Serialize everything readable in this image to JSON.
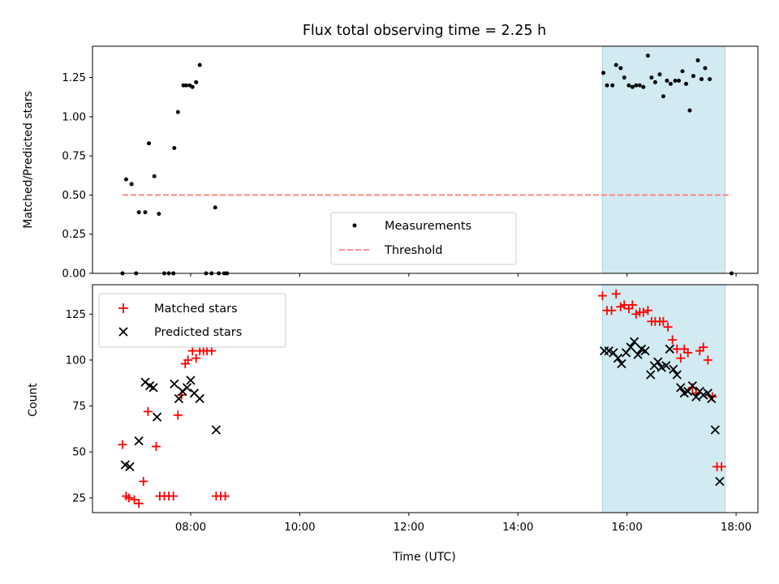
{
  "chart_data": [
    {
      "type": "scatter",
      "title": "Flux total observing time = 2.25 h",
      "ylabel": "Matched/Predicted stars",
      "xlabel": "",
      "xlim": [
        "06:12",
        "18:24"
      ],
      "ylim": [
        0,
        1.45
      ],
      "ytick_labels": [
        "0.00",
        "0.25",
        "0.50",
        "0.75",
        "1.00",
        "1.25"
      ],
      "highlight_span": [
        "15:33",
        "17:48"
      ],
      "highlight_color": "#add8e6",
      "legend_position": "lower-center",
      "series": [
        {
          "name": "Measurements",
          "marker": "dot",
          "color": "#000000",
          "points": [
            [
              "06:45",
              0.0
            ],
            [
              "06:49",
              0.6
            ],
            [
              "06:55",
              0.57
            ],
            [
              "07:00",
              0.0
            ],
            [
              "07:03",
              0.39
            ],
            [
              "07:10",
              0.39
            ],
            [
              "07:14",
              0.83
            ],
            [
              "07:20",
              0.62
            ],
            [
              "07:25",
              0.38
            ],
            [
              "07:31",
              0.0
            ],
            [
              "07:36",
              0.0
            ],
            [
              "07:41",
              0.0
            ],
            [
              "07:42",
              0.8
            ],
            [
              "07:46",
              1.03
            ],
            [
              "07:52",
              1.2
            ],
            [
              "07:55",
              1.2
            ],
            [
              "07:59",
              1.2
            ],
            [
              "08:02",
              1.19
            ],
            [
              "08:06",
              1.22
            ],
            [
              "08:10",
              1.33
            ],
            [
              "08:17",
              0.0
            ],
            [
              "08:23",
              0.0
            ],
            [
              "08:27",
              0.42
            ],
            [
              "08:31",
              0.0
            ],
            [
              "08:37",
              0.0
            ],
            [
              "08:40",
              0.0
            ],
            [
              "15:34",
              1.28
            ],
            [
              "15:38",
              1.2
            ],
            [
              "15:44",
              1.2
            ],
            [
              "15:48",
              1.33
            ],
            [
              "15:53",
              1.31
            ],
            [
              "15:57",
              1.25
            ],
            [
              "16:02",
              1.2
            ],
            [
              "16:06",
              1.19
            ],
            [
              "16:10",
              1.2
            ],
            [
              "16:14",
              1.2
            ],
            [
              "16:18",
              1.19
            ],
            [
              "16:23",
              1.39
            ],
            [
              "16:27",
              1.25
            ],
            [
              "16:31",
              1.22
            ],
            [
              "16:36",
              1.27
            ],
            [
              "16:40",
              1.13
            ],
            [
              "16:44",
              1.23
            ],
            [
              "16:48",
              1.21
            ],
            [
              "16:53",
              1.23
            ],
            [
              "16:57",
              1.23
            ],
            [
              "17:01",
              1.29
            ],
            [
              "17:05",
              1.21
            ],
            [
              "17:09",
              1.04
            ],
            [
              "17:13",
              1.26
            ],
            [
              "17:18",
              1.36
            ],
            [
              "17:22",
              1.24
            ],
            [
              "17:26",
              1.31
            ],
            [
              "17:31",
              1.24
            ],
            [
              "17:55",
              0.0
            ]
          ]
        },
        {
          "name": "Threshold",
          "marker": "dashed-line",
          "color": "#ff8080",
          "points": [
            [
              "06:45",
              0.5
            ],
            [
              "17:55",
              0.5
            ]
          ]
        }
      ]
    },
    {
      "type": "scatter",
      "title": "",
      "ylabel": "Count",
      "xlabel": "Time (UTC)",
      "xlim": [
        "06:12",
        "18:24"
      ],
      "ylim": [
        17,
        141
      ],
      "ytick_labels": [
        "25",
        "50",
        "75",
        "100",
        "125"
      ],
      "xtick_labels": [
        "08:00",
        "10:00",
        "12:00",
        "14:00",
        "16:00",
        "18:00"
      ],
      "highlight_span": [
        "15:33",
        "17:48"
      ],
      "highlight_color": "#add8e6",
      "legend_position": "upper-left",
      "series": [
        {
          "name": "Matched stars",
          "marker": "plus",
          "color": "#ff0000",
          "points": [
            [
              "06:45",
              54
            ],
            [
              "06:49",
              26
            ],
            [
              "06:52",
              25
            ],
            [
              "06:58",
              24
            ],
            [
              "07:03",
              22
            ],
            [
              "07:08",
              34
            ],
            [
              "07:13",
              72
            ],
            [
              "07:22",
              53
            ],
            [
              "07:26",
              26
            ],
            [
              "07:31",
              26
            ],
            [
              "07:36",
              26
            ],
            [
              "07:41",
              26
            ],
            [
              "07:46",
              70
            ],
            [
              "07:50",
              81
            ],
            [
              "07:54",
              98
            ],
            [
              "07:57",
              100
            ],
            [
              "08:02",
              105
            ],
            [
              "08:06",
              101
            ],
            [
              "08:10",
              105
            ],
            [
              "08:14",
              105
            ],
            [
              "08:18",
              105
            ],
            [
              "08:23",
              105
            ],
            [
              "08:28",
              26
            ],
            [
              "08:33",
              26
            ],
            [
              "08:38",
              26
            ],
            [
              "15:33",
              135
            ],
            [
              "15:38",
              127
            ],
            [
              "15:43",
              127
            ],
            [
              "15:48",
              136
            ],
            [
              "15:53",
              129
            ],
            [
              "15:57",
              130
            ],
            [
              "16:02",
              128
            ],
            [
              "16:06",
              130
            ],
            [
              "16:10",
              125
            ],
            [
              "16:14",
              126
            ],
            [
              "16:18",
              126
            ],
            [
              "16:23",
              127
            ],
            [
              "16:27",
              121
            ],
            [
              "16:31",
              121
            ],
            [
              "16:36",
              121
            ],
            [
              "16:40",
              121
            ],
            [
              "16:45",
              118
            ],
            [
              "16:50",
              111
            ],
            [
              "16:55",
              106
            ],
            [
              "16:59",
              101
            ],
            [
              "17:03",
              106
            ],
            [
              "17:07",
              104
            ],
            [
              "17:12",
              85
            ],
            [
              "17:16",
              82
            ],
            [
              "17:20",
              105
            ],
            [
              "17:24",
              107
            ],
            [
              "17:29",
              100
            ],
            [
              "17:34",
              80
            ],
            [
              "17:39",
              42
            ],
            [
              "17:44",
              42
            ]
          ]
        },
        {
          "name": "Predicted stars",
          "marker": "x",
          "color": "#000000",
          "points": [
            [
              "06:48",
              43
            ],
            [
              "06:53",
              42
            ],
            [
              "07:03",
              56
            ],
            [
              "07:10",
              88
            ],
            [
              "07:15",
              86
            ],
            [
              "07:19",
              85
            ],
            [
              "07:23",
              69
            ],
            [
              "07:42",
              87
            ],
            [
              "07:47",
              79
            ],
            [
              "07:51",
              83
            ],
            [
              "07:56",
              85
            ],
            [
              "08:00",
              89
            ],
            [
              "08:04",
              82
            ],
            [
              "08:10",
              79
            ],
            [
              "08:28",
              62
            ],
            [
              "15:35",
              105
            ],
            [
              "15:40",
              105
            ],
            [
              "15:45",
              104
            ],
            [
              "15:50",
              101
            ],
            [
              "15:54",
              98
            ],
            [
              "15:59",
              104
            ],
            [
              "16:04",
              107
            ],
            [
              "16:08",
              110
            ],
            [
              "16:12",
              103
            ],
            [
              "16:16",
              106
            ],
            [
              "16:20",
              105
            ],
            [
              "16:26",
              92
            ],
            [
              "16:30",
              97
            ],
            [
              "16:34",
              99
            ],
            [
              "16:38",
              96
            ],
            [
              "16:43",
              97
            ],
            [
              "16:47",
              106
            ],
            [
              "16:51",
              95
            ],
            [
              "16:55",
              92
            ],
            [
              "16:59",
              85
            ],
            [
              "17:03",
              82
            ],
            [
              "17:07",
              83
            ],
            [
              "17:12",
              86
            ],
            [
              "17:16",
              80
            ],
            [
              "17:20",
              83
            ],
            [
              "17:24",
              81
            ],
            [
              "17:29",
              82
            ],
            [
              "17:33",
              79
            ],
            [
              "17:37",
              62
            ],
            [
              "17:42",
              34
            ]
          ]
        }
      ]
    }
  ]
}
